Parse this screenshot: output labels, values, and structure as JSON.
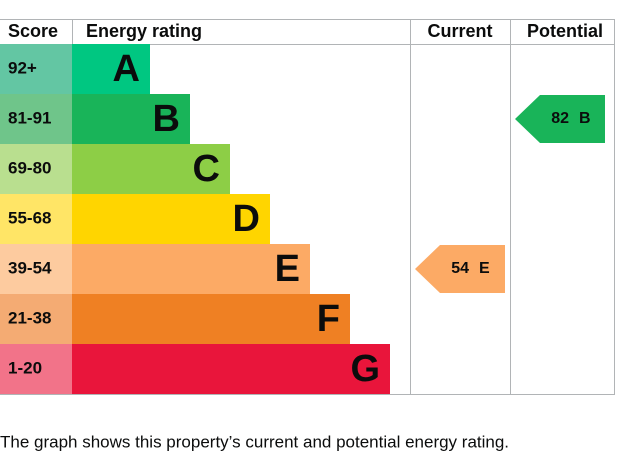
{
  "header": {
    "score": "Score",
    "rating": "Energy rating",
    "current": "Current",
    "potential": "Potential"
  },
  "bands": [
    {
      "score": "92+",
      "letter": "A",
      "color": "#00c781",
      "score_color": "#63c6a3"
    },
    {
      "score": "81-91",
      "letter": "B",
      "color": "#19b459",
      "score_color": "#6fc58a"
    },
    {
      "score": "69-80",
      "letter": "C",
      "color": "#8dce46",
      "score_color": "#b9df8f"
    },
    {
      "score": "55-68",
      "letter": "D",
      "color": "#ffd500",
      "score_color": "#ffe566"
    },
    {
      "score": "39-54",
      "letter": "E",
      "color": "#fcaa65",
      "score_color": "#fdcb9f"
    },
    {
      "score": "21-38",
      "letter": "F",
      "color": "#ef8023",
      "score_color": "#f4ab73"
    },
    {
      "score": "1-20",
      "letter": "G",
      "color": "#e9153b",
      "score_color": "#f27389"
    }
  ],
  "current": {
    "value": 54,
    "rating": "E"
  },
  "potential": {
    "value": 82,
    "rating": "B"
  },
  "caption": "The graph shows this property’s current and potential energy rating."
}
